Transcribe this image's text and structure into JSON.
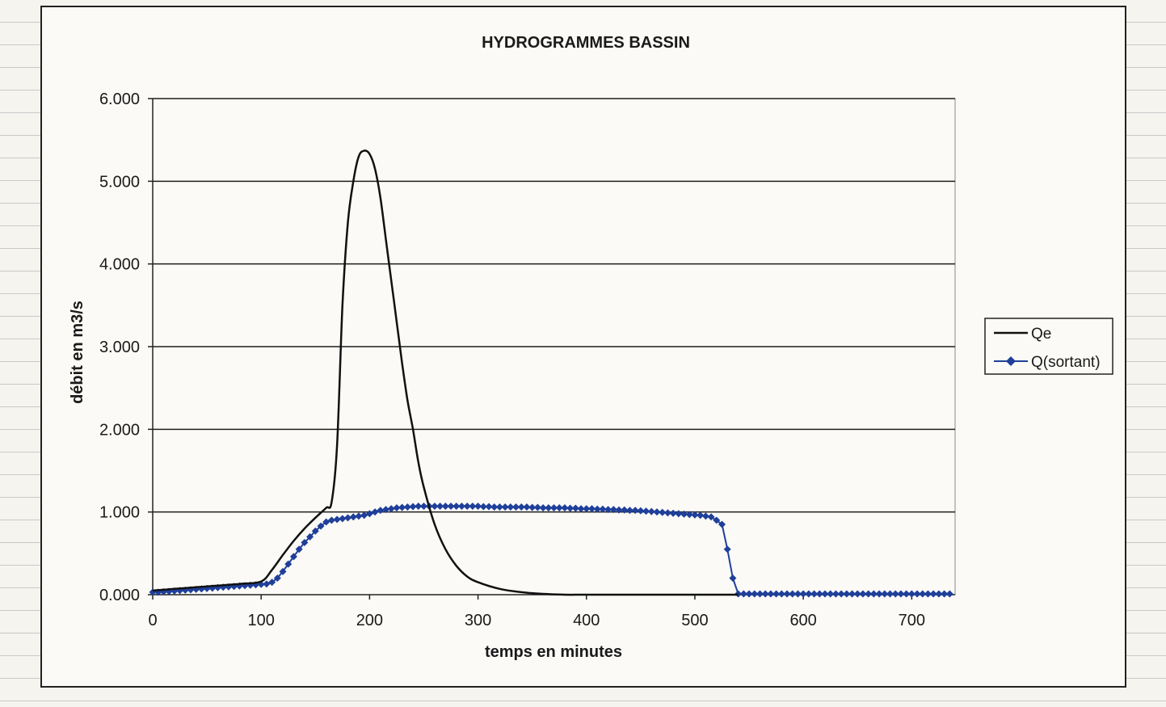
{
  "chart_data": {
    "type": "line",
    "title": "HYDROGRAMMES BASSIN",
    "xlabel": "temps en minutes",
    "ylabel": "débit en m3/s",
    "xlim": [
      0,
      740
    ],
    "ylim": [
      0,
      6
    ],
    "x_ticks": [
      0,
      100,
      200,
      300,
      400,
      500,
      600,
      700
    ],
    "x_tick_labels": [
      "0",
      "100",
      "200",
      "300",
      "400",
      "500",
      "600",
      "700"
    ],
    "y_ticks": [
      0,
      1,
      2,
      3,
      4,
      5,
      6
    ],
    "y_tick_labels": [
      "0.000",
      "1.000",
      "2.000",
      "3.000",
      "4.000",
      "5.000",
      "6.000"
    ],
    "grid": "horizontal",
    "legend_position": "right",
    "series": [
      {
        "name": "Qe",
        "color": "#111111",
        "marker": "none",
        "x": [
          0,
          20,
          40,
          60,
          80,
          100,
          110,
          120,
          130,
          140,
          150,
          160,
          165,
          170,
          175,
          180,
          185,
          190,
          195,
          200,
          205,
          210,
          215,
          220,
          225,
          230,
          235,
          240,
          245,
          250,
          260,
          270,
          280,
          290,
          300,
          320,
          340,
          360,
          380,
          400,
          450,
          500,
          540
        ],
        "y": [
          0.05,
          0.07,
          0.09,
          0.11,
          0.13,
          0.16,
          0.3,
          0.48,
          0.65,
          0.8,
          0.93,
          1.05,
          1.12,
          1.8,
          3.5,
          4.5,
          5.0,
          5.3,
          5.37,
          5.33,
          5.15,
          4.8,
          4.3,
          3.8,
          3.3,
          2.8,
          2.35,
          2.0,
          1.6,
          1.3,
          0.85,
          0.55,
          0.35,
          0.22,
          0.15,
          0.07,
          0.03,
          0.01,
          0.0,
          0.0,
          0.0,
          0.0,
          0.0
        ]
      },
      {
        "name": "Q(sortant)",
        "color": "#1f3f9a",
        "marker": "diamond",
        "x": [
          0,
          5,
          10,
          15,
          20,
          25,
          30,
          35,
          40,
          45,
          50,
          55,
          60,
          65,
          70,
          75,
          80,
          85,
          90,
          95,
          100,
          105,
          110,
          115,
          120,
          125,
          130,
          135,
          140,
          145,
          150,
          155,
          160,
          165,
          170,
          175,
          180,
          185,
          190,
          195,
          200,
          205,
          210,
          215,
          220,
          225,
          230,
          235,
          240,
          245,
          250,
          255,
          260,
          265,
          270,
          275,
          280,
          285,
          290,
          295,
          300,
          305,
          310,
          315,
          320,
          325,
          330,
          335,
          340,
          345,
          350,
          355,
          360,
          365,
          370,
          375,
          380,
          385,
          390,
          395,
          400,
          405,
          410,
          415,
          420,
          425,
          430,
          435,
          440,
          445,
          450,
          455,
          460,
          465,
          470,
          475,
          480,
          485,
          490,
          495,
          500,
          505,
          510,
          515,
          520,
          525,
          530,
          535,
          540,
          545,
          550,
          555,
          560,
          565,
          570,
          575,
          580,
          585,
          590,
          595,
          600,
          605,
          610,
          615,
          620,
          625,
          630,
          635,
          640,
          645,
          650,
          655,
          660,
          665,
          670,
          675,
          680,
          685,
          690,
          695,
          700,
          705,
          710,
          715,
          720,
          725,
          730,
          735
        ],
        "y": [
          0.03,
          0.03,
          0.035,
          0.04,
          0.045,
          0.05,
          0.055,
          0.06,
          0.065,
          0.07,
          0.075,
          0.08,
          0.085,
          0.09,
          0.095,
          0.1,
          0.105,
          0.11,
          0.115,
          0.12,
          0.125,
          0.13,
          0.15,
          0.2,
          0.28,
          0.37,
          0.46,
          0.55,
          0.63,
          0.7,
          0.77,
          0.83,
          0.88,
          0.9,
          0.91,
          0.92,
          0.93,
          0.94,
          0.95,
          0.96,
          0.98,
          1.0,
          1.02,
          1.03,
          1.04,
          1.05,
          1.055,
          1.06,
          1.065,
          1.07,
          1.07,
          1.07,
          1.07,
          1.07,
          1.07,
          1.07,
          1.07,
          1.07,
          1.07,
          1.07,
          1.07,
          1.065,
          1.065,
          1.06,
          1.06,
          1.06,
          1.06,
          1.06,
          1.06,
          1.06,
          1.055,
          1.055,
          1.05,
          1.05,
          1.05,
          1.05,
          1.05,
          1.045,
          1.045,
          1.04,
          1.04,
          1.04,
          1.035,
          1.035,
          1.03,
          1.03,
          1.025,
          1.025,
          1.02,
          1.02,
          1.015,
          1.01,
          1.005,
          1.0,
          0.995,
          0.99,
          0.985,
          0.98,
          0.975,
          0.97,
          0.965,
          0.96,
          0.95,
          0.94,
          0.9,
          0.85,
          0.55,
          0.2,
          0.01,
          0.01,
          0.01,
          0.01,
          0.01,
          0.01,
          0.01,
          0.01,
          0.01,
          0.01,
          0.01,
          0.01,
          0.01,
          0.01,
          0.01,
          0.01,
          0.01,
          0.01,
          0.01,
          0.01,
          0.01,
          0.01,
          0.01,
          0.01,
          0.01,
          0.01,
          0.01,
          0.01,
          0.01,
          0.01,
          0.01,
          0.01,
          0.01,
          0.01,
          0.01,
          0.01,
          0.01,
          0.01,
          0.01,
          0.01
        ]
      }
    ]
  }
}
